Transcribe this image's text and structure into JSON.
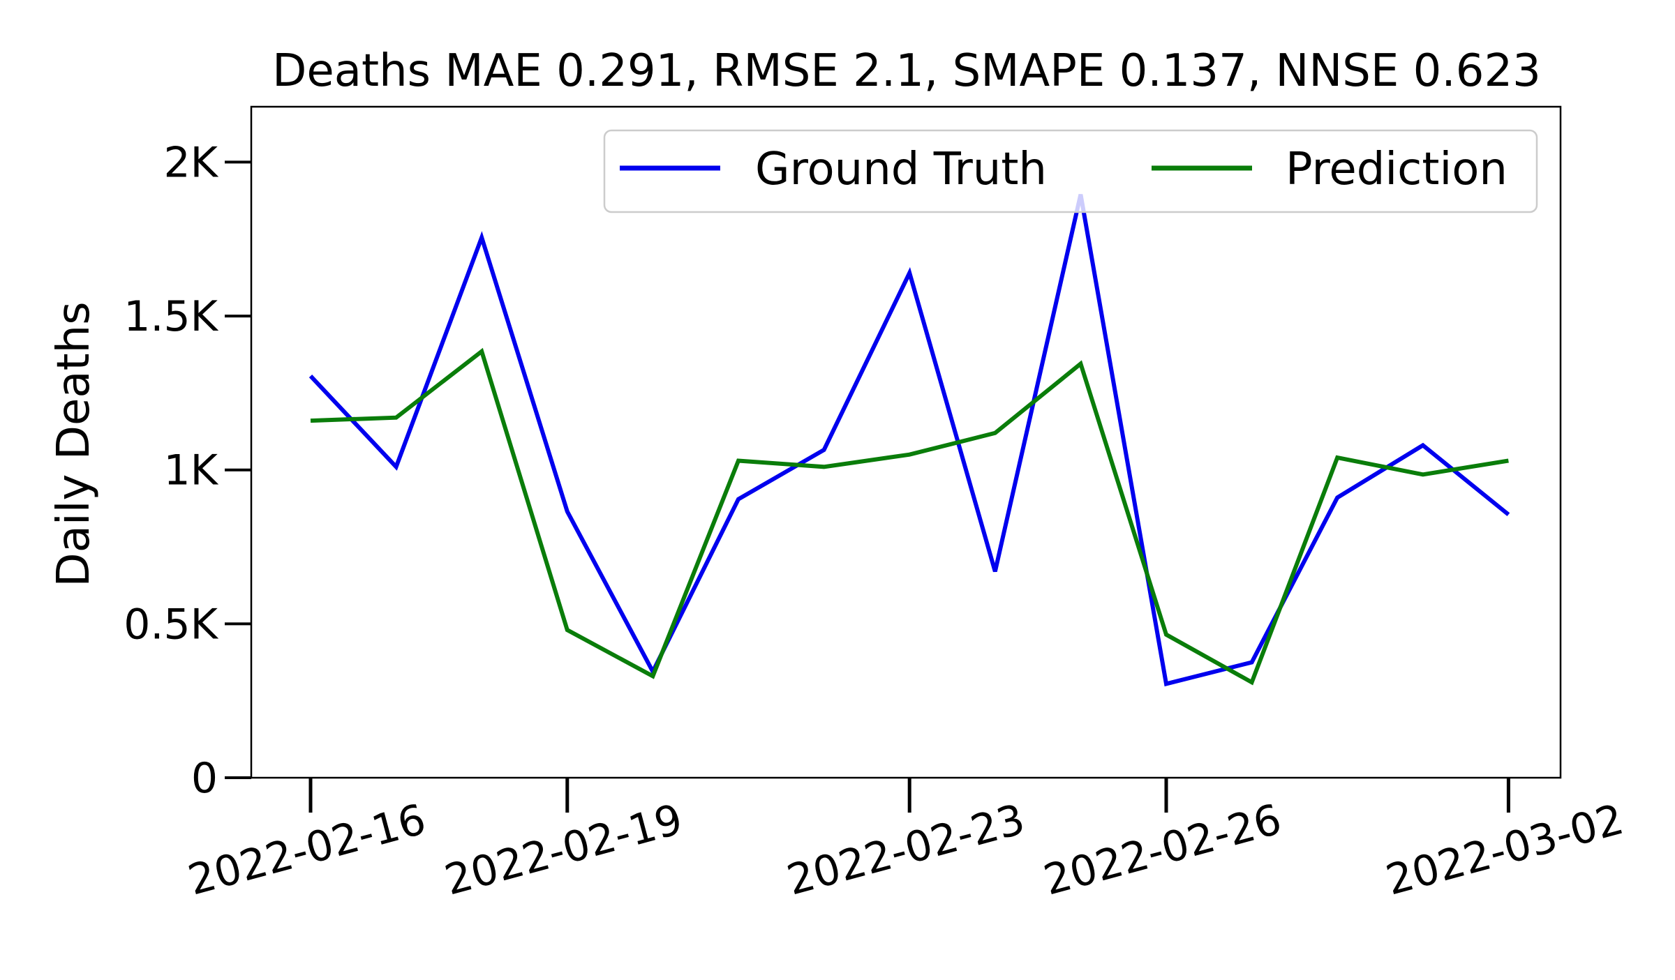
{
  "chart_data": {
    "type": "line",
    "title": "Deaths MAE 0.291, RMSE 2.1, SMAPE 0.137, NNSE 0.623",
    "xlabel": "",
    "ylabel": "Daily Deaths",
    "x": [
      "2022-02-16",
      "2022-02-17",
      "2022-02-18",
      "2022-02-19",
      "2022-02-20",
      "2022-02-21",
      "2022-02-22",
      "2022-02-23",
      "2022-02-24",
      "2022-02-25",
      "2022-02-26",
      "2022-02-27",
      "2022-02-28",
      "2022-03-01",
      "2022-03-02"
    ],
    "x_ticks": [
      "2022-02-16",
      "2022-02-19",
      "2022-02-23",
      "2022-02-26",
      "2022-03-02"
    ],
    "y_ticks": [
      0,
      500,
      1000,
      1500,
      2000
    ],
    "y_tick_labels": [
      "0",
      "0.5K",
      "1K",
      "1.5K",
      "2K"
    ],
    "ylim": [
      0,
      2180
    ],
    "grid": false,
    "legend_position": "top-right",
    "series": [
      {
        "name": "Ground Truth",
        "color": "#0000ee",
        "values": [
          1305,
          1010,
          1755,
          865,
          345,
          905,
          1065,
          1640,
          670,
          1895,
          305,
          375,
          910,
          1080,
          855
        ]
      },
      {
        "name": "Prediction",
        "color": "#0a7d0a",
        "values": [
          1160,
          1170,
          1385,
          480,
          330,
          1030,
          1010,
          1050,
          1120,
          1345,
          465,
          310,
          1040,
          985,
          1030
        ]
      }
    ]
  }
}
